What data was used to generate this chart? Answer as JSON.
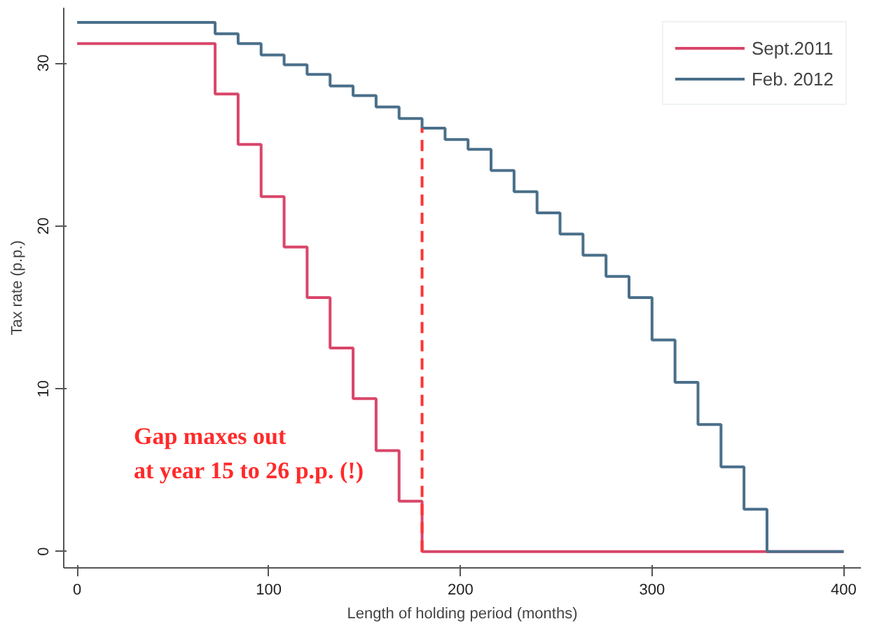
{
  "chart_data": {
    "type": "step",
    "xlabel": "Length of holding period (months)",
    "ylabel": "Tax rate (p.p.)",
    "xlim": [
      -7,
      409
    ],
    "ylim": [
      -1,
      33.4
    ],
    "xticks": [
      0,
      100,
      200,
      300,
      400
    ],
    "yticks": [
      0,
      10,
      20,
      30
    ],
    "grid": false,
    "legend": "top right",
    "line_style": "solid",
    "series": [
      {
        "name": "Sept.2011",
        "color": "#d9466a",
        "x": [
          0,
          72,
          84,
          96,
          108,
          120,
          132,
          144,
          156,
          168,
          180,
          400
        ],
        "values": [
          31.2,
          28.1,
          25.0,
          21.8,
          18.7,
          15.6,
          12.5,
          9.4,
          6.2,
          3.1,
          0,
          0
        ]
      },
      {
        "name": "Feb. 2012",
        "color": "#4a6f8a",
        "x": [
          0,
          72,
          84,
          96,
          108,
          120,
          132,
          144,
          156,
          168,
          180,
          192,
          204,
          216,
          228,
          240,
          252,
          264,
          276,
          288,
          300,
          312,
          324,
          336,
          348,
          360,
          400
        ],
        "values": [
          32.5,
          31.8,
          31.2,
          30.5,
          29.9,
          29.3,
          28.6,
          28.0,
          27.3,
          26.6,
          26.0,
          25.3,
          24.7,
          23.4,
          22.1,
          20.8,
          19.5,
          18.2,
          16.9,
          15.6,
          13.0,
          10.4,
          7.8,
          5.2,
          2.6,
          0,
          0
        ]
      }
    ],
    "ref_lines": [
      {
        "axis": "x",
        "value": 180,
        "color": "#ff3333",
        "line_style": "dashed"
      }
    ],
    "annotations": [
      "Gap maxes out\nat year 15 to 26 p.p. (!)"
    ]
  }
}
